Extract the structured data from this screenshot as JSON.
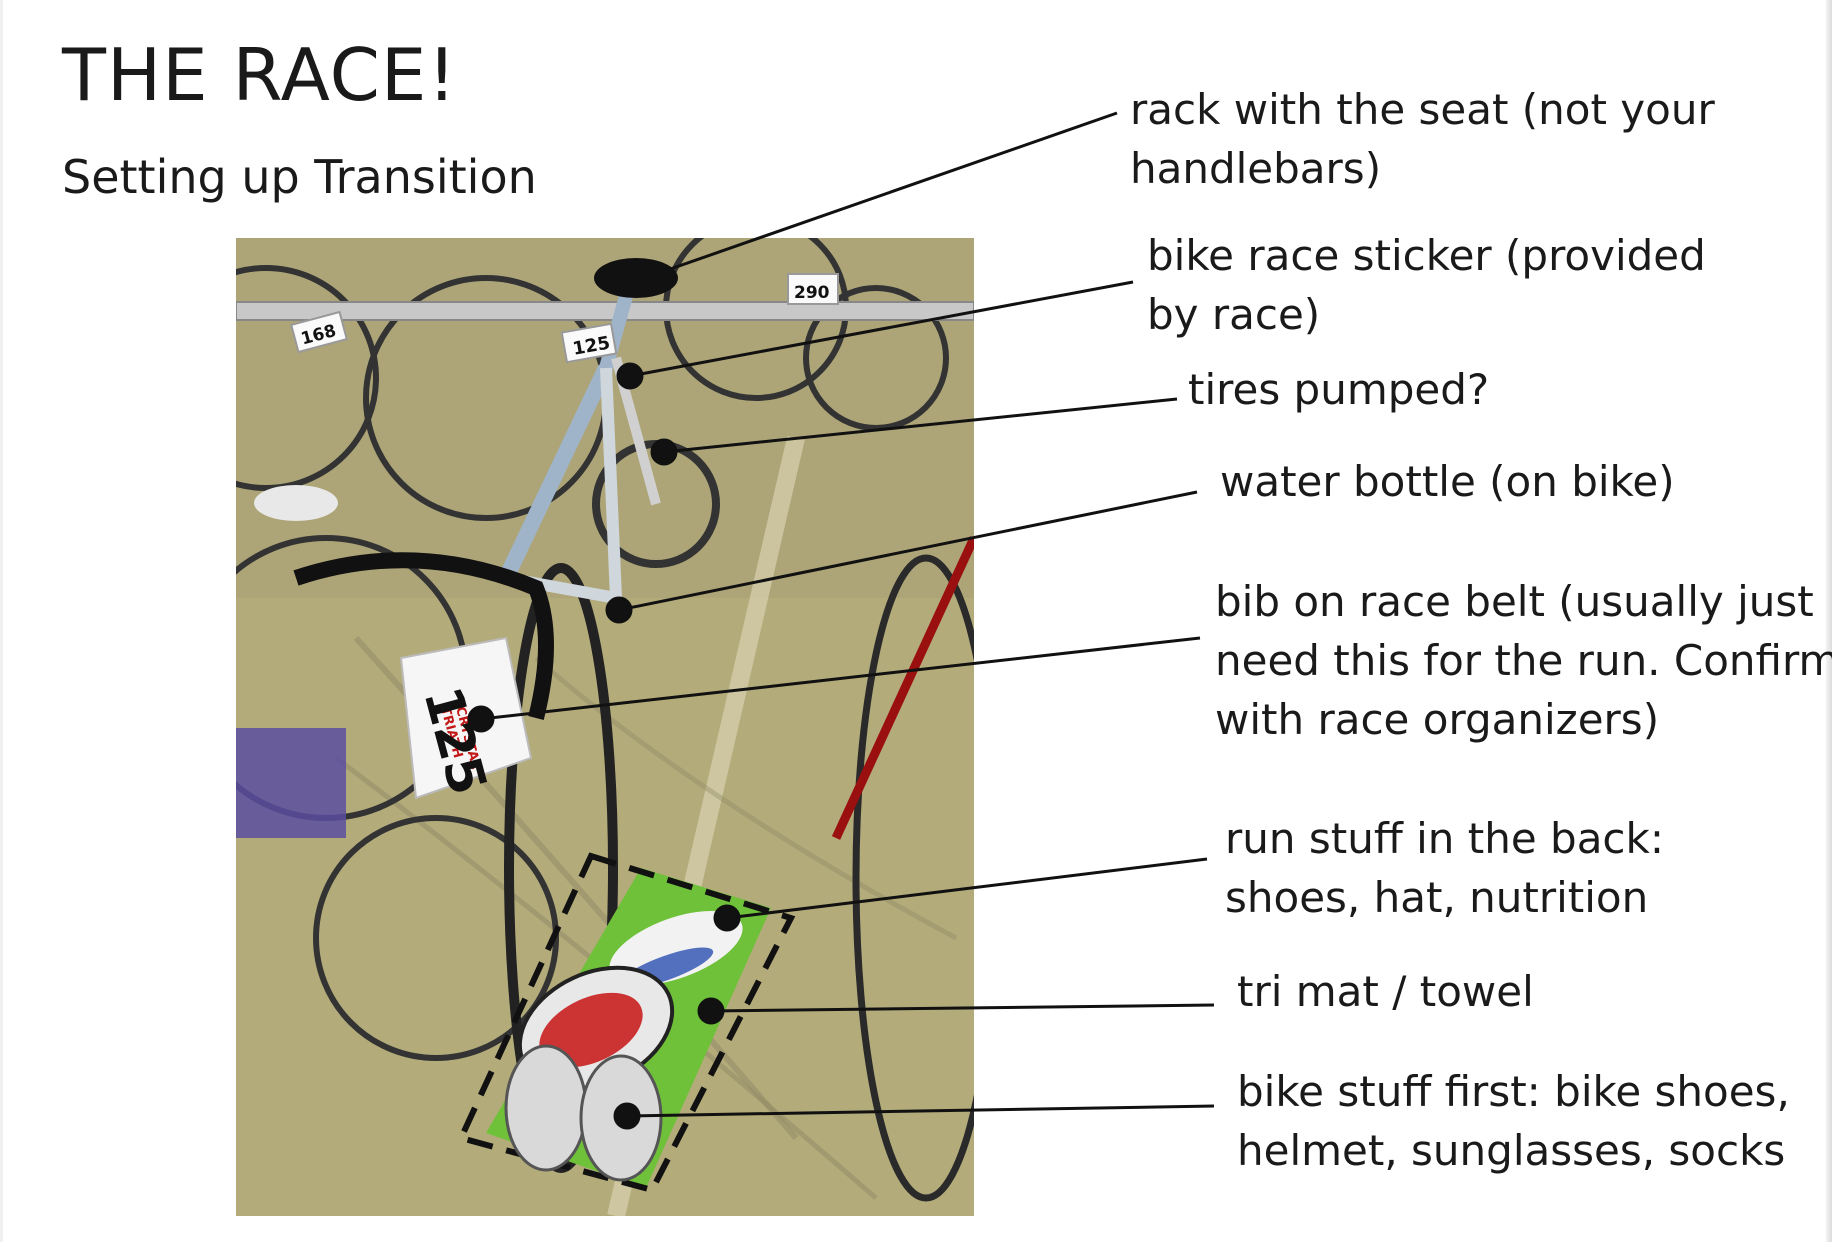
{
  "slide": {
    "title": "THE RACE!",
    "subtitle": "Setting up Transition"
  },
  "photo": {
    "bib_number": "125",
    "rack_numbers": [
      "168",
      "290"
    ],
    "bib_text": [
      "CRYSTAL",
      "TRIATH",
      "20"
    ]
  },
  "callouts": [
    {
      "lines": [
        "rack with the seat (not your",
        "handlebars)"
      ]
    },
    {
      "lines": [
        "bike race sticker (provided",
        "by race)"
      ]
    },
    {
      "lines": [
        "tires pumped?"
      ]
    },
    {
      "lines": [
        "water bottle (on bike)"
      ]
    },
    {
      "lines": [
        "bib on race belt (usually just",
        "need this for the run. Confirm",
        "with race organizers)"
      ]
    },
    {
      "lines": [
        "run stuff in the back:",
        "shoes, hat, nutrition"
      ]
    },
    {
      "lines": [
        "tri mat / towel"
      ]
    },
    {
      "lines": [
        "bike stuff first: bike shoes,",
        "helmet, sunglasses, socks"
      ]
    }
  ],
  "colors": {
    "ground": "#b3ab7a",
    "mat": "#6fc13a",
    "bar": "#c8c8c8",
    "text": "#1a1a1a"
  }
}
